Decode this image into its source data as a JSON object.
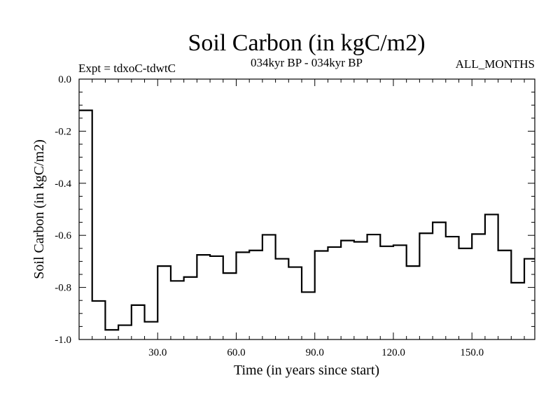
{
  "chart_data": {
    "type": "line",
    "style": "step",
    "title": "Soil Carbon (in kgC/m2)",
    "subtitle": "034kyr BP - 034kyr BP",
    "annotation_left": "Expt = tdxoC-tdwtC",
    "annotation_right": "ALL_MONTHS",
    "xlabel": "Time (in years since start)",
    "ylabel": "Soil Carbon (in kgC/m2)",
    "xlim": [
      0,
      174
    ],
    "ylim": [
      -1.0,
      0.0
    ],
    "x_ticks": [
      30,
      60,
      90,
      120,
      150
    ],
    "x_tick_labels": [
      "30.0",
      "60.0",
      "90.0",
      "120.0",
      "150.0"
    ],
    "y_ticks": [
      0.0,
      -0.2,
      -0.4,
      -0.6,
      -0.8,
      -1.0
    ],
    "y_tick_labels": [
      "0.0",
      "-0.2",
      "-0.4",
      "-0.6",
      "-0.8",
      "-1.0"
    ],
    "series": [
      {
        "name": "Soil Carbon",
        "bin_width": 5,
        "x": [
          0,
          5,
          10,
          15,
          20,
          25,
          30,
          35,
          40,
          45,
          50,
          55,
          60,
          65,
          70,
          75,
          80,
          85,
          90,
          95,
          100,
          105,
          110,
          115,
          120,
          125,
          130,
          135,
          140,
          145,
          150,
          155,
          160,
          165,
          170
        ],
        "values": [
          -0.12,
          -0.852,
          -0.963,
          -0.945,
          -0.868,
          -0.932,
          -0.718,
          -0.775,
          -0.76,
          -0.675,
          -0.68,
          -0.745,
          -0.665,
          -0.658,
          -0.598,
          -0.69,
          -0.722,
          -0.818,
          -0.66,
          -0.645,
          -0.62,
          -0.625,
          -0.597,
          -0.642,
          -0.638,
          -0.718,
          -0.592,
          -0.55,
          -0.605,
          -0.65,
          -0.595,
          -0.52,
          -0.658,
          -0.782,
          -0.69
        ]
      }
    ]
  }
}
